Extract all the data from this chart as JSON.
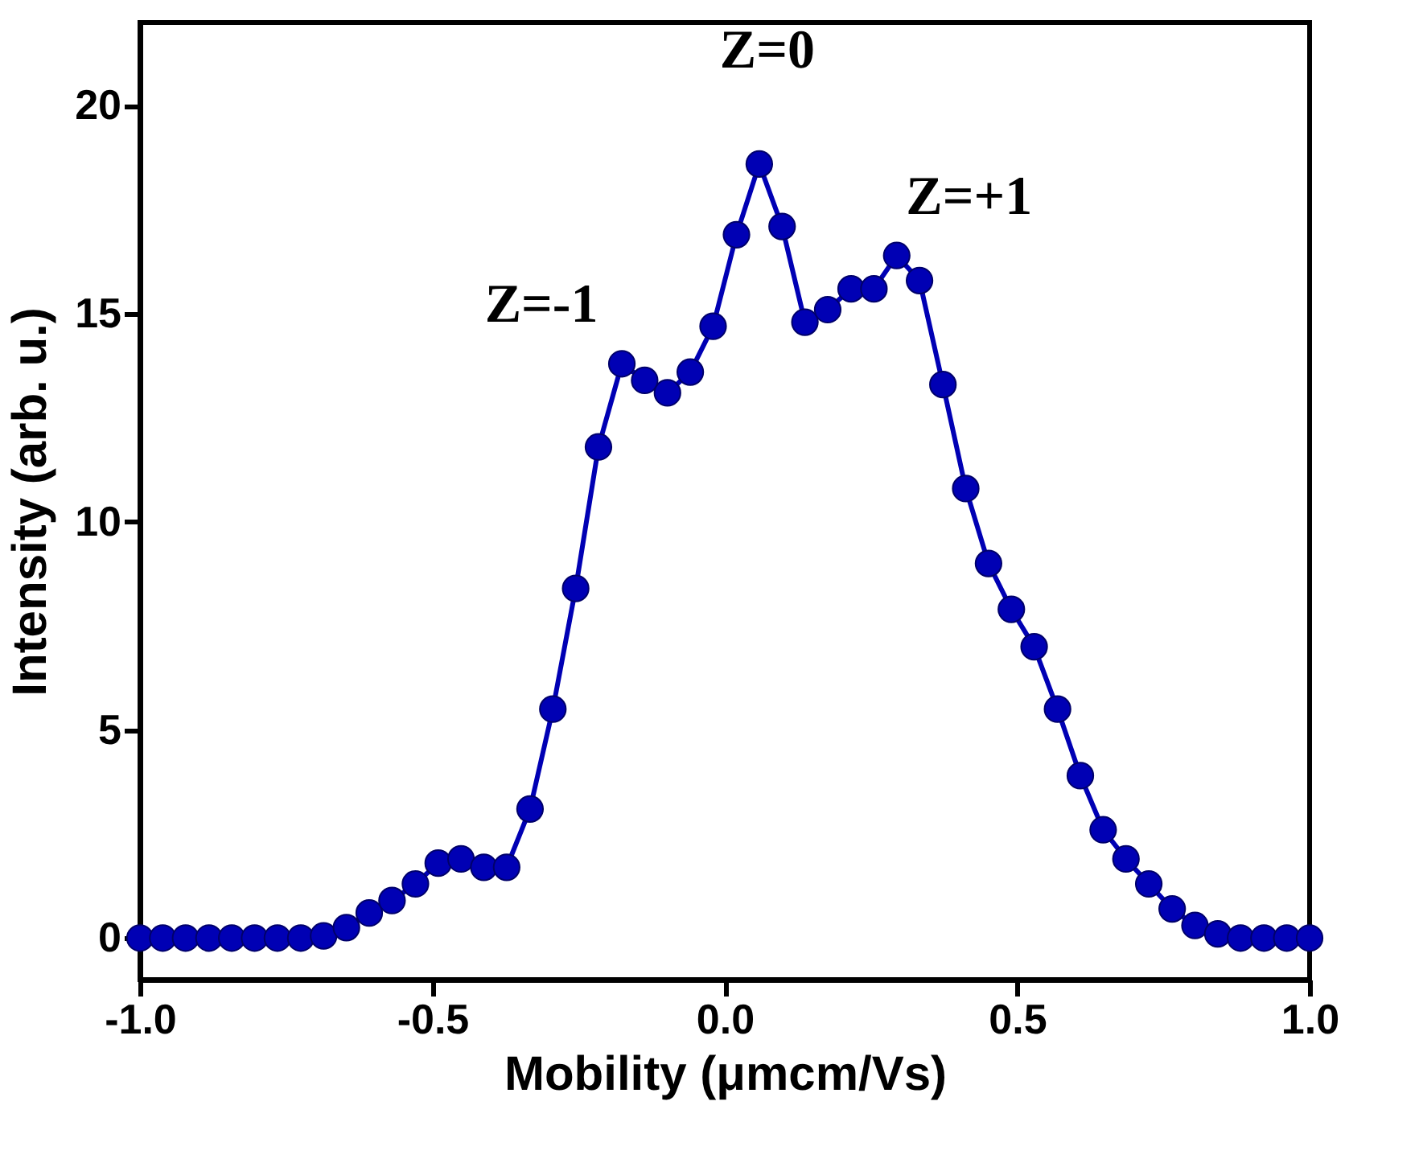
{
  "chart_data": {
    "type": "line",
    "xlabel": "Mobility (μmcm/Vs)",
    "ylabel": "Intensity (arb. u.)",
    "x": [
      -1,
      -0.961,
      -0.922,
      -0.882,
      -0.843,
      -0.804,
      -0.765,
      -0.725,
      -0.686,
      -0.647,
      -0.608,
      -0.569,
      -0.529,
      -0.49,
      -0.451,
      -0.412,
      -0.373,
      -0.333,
      -0.294,
      -0.255,
      -0.216,
      -0.176,
      -0.137,
      -0.098,
      -0.059,
      -0.02,
      0.02,
      0.059,
      0.098,
      0.137,
      0.176,
      0.216,
      0.255,
      0.294,
      0.333,
      0.373,
      0.412,
      0.451,
      0.49,
      0.529,
      0.569,
      0.608,
      0.647,
      0.686,
      0.725,
      0.765,
      0.804,
      0.843,
      0.882,
      0.922,
      0.961,
      1
    ],
    "series": [
      {
        "color": "#0000b4",
        "values": [
          0,
          0,
          0,
          0,
          0,
          0,
          0,
          0,
          0.05,
          0.25,
          0.6,
          0.9,
          1.3,
          1.8,
          1.9,
          1.7,
          1.7,
          3.1,
          5.5,
          8.4,
          11.8,
          13.8,
          13.4,
          13.1,
          13.6,
          14.7,
          16.9,
          18.6,
          17.1,
          14.8,
          15.1,
          15.6,
          15.6,
          16.4,
          15.8,
          13.3,
          10.8,
          9.0,
          7.9,
          7.0,
          5.5,
          3.9,
          2.6,
          1.9,
          1.3,
          0.7,
          0.3,
          0.1,
          0,
          0,
          0,
          0
        ]
      }
    ],
    "annotations": [
      {
        "text": "Z=-1",
        "x": -0.176,
        "y": 13.8
      },
      {
        "text": "Z=0",
        "x": 0.059,
        "y": 18.6
      },
      {
        "text": "Z=+1",
        "x": 0.294,
        "y": 16.4
      }
    ],
    "xlim": [
      -1,
      1
    ],
    "xticks": [
      {
        "value": -1,
        "label": "-1.0"
      },
      {
        "value": -0.5,
        "label": "-0.5"
      },
      {
        "value": 0,
        "label": "0.0"
      },
      {
        "value": 0.5,
        "label": "0.5"
      },
      {
        "value": 1,
        "label": "1.0"
      }
    ],
    "ylim": [
      -1,
      22
    ],
    "yticks": [
      0,
      5,
      10,
      15,
      20
    ],
    "marker": "circle",
    "line_style": "solid",
    "grid": false
  }
}
